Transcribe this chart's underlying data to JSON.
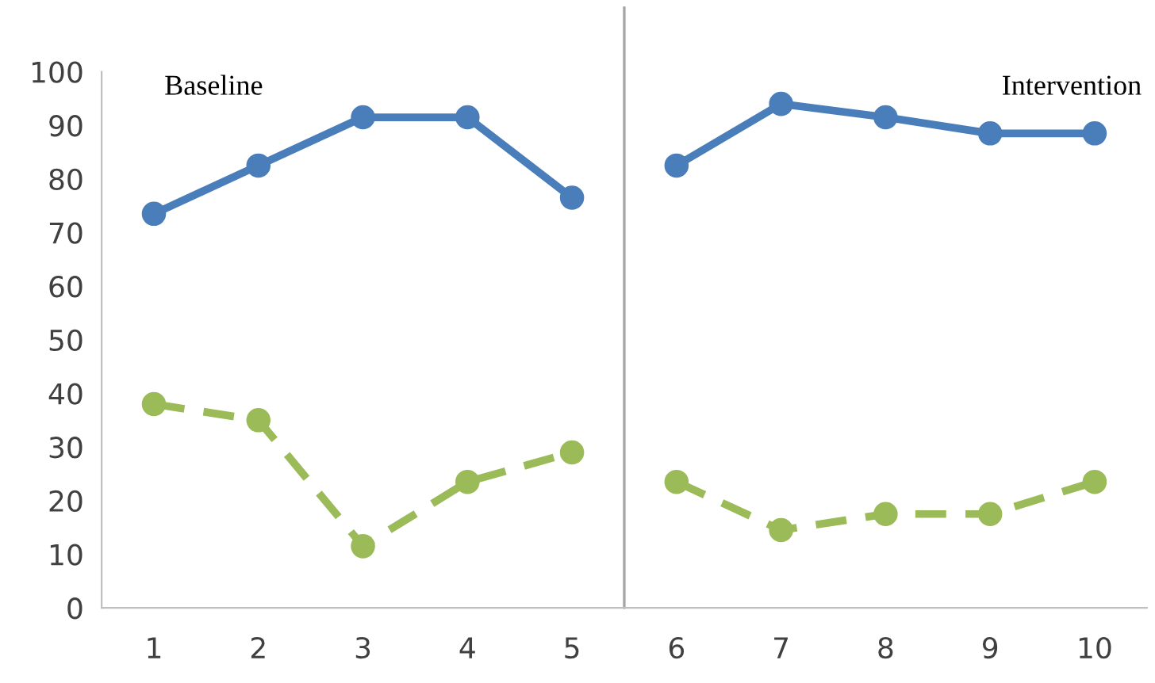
{
  "chart_data": {
    "type": "line",
    "x": [
      1,
      2,
      3,
      4,
      5,
      6,
      7,
      8,
      9,
      10
    ],
    "xlim": [
      0.5,
      10.5
    ],
    "xticks": [
      1,
      2,
      3,
      4,
      5,
      6,
      7,
      8,
      9,
      10
    ],
    "ylim": [
      0,
      100
    ],
    "yticks": [
      0,
      10,
      20,
      30,
      40,
      50,
      60,
      70,
      80,
      90,
      100
    ],
    "grid": false,
    "marker": "circle",
    "series": [
      {
        "color": "#4a7ebb",
        "line_style": "solid",
        "values": [
          73.5,
          82.5,
          91.5,
          91.5,
          76.5,
          null,
          null,
          null,
          null,
          null
        ]
      },
      {
        "color": "#4a7ebb",
        "line_style": "solid",
        "values": [
          null,
          null,
          null,
          null,
          null,
          82.5,
          94,
          91.5,
          88.5,
          88.5
        ]
      },
      {
        "color": "#9bbb59",
        "line_style": "dashed",
        "values": [
          38,
          35,
          11.5,
          23.5,
          29,
          null,
          null,
          null,
          null,
          null
        ]
      },
      {
        "color": "#9bbb59",
        "line_style": "dashed",
        "values": [
          null,
          null,
          null,
          null,
          null,
          23.5,
          14.5,
          17.5,
          17.5,
          23.5
        ]
      }
    ],
    "ref_lines": [
      {
        "axis": "x",
        "value": 5.5,
        "label": null,
        "color": "#a6a6a6"
      }
    ],
    "annotations": [
      "Baseline",
      "Intervention"
    ]
  }
}
